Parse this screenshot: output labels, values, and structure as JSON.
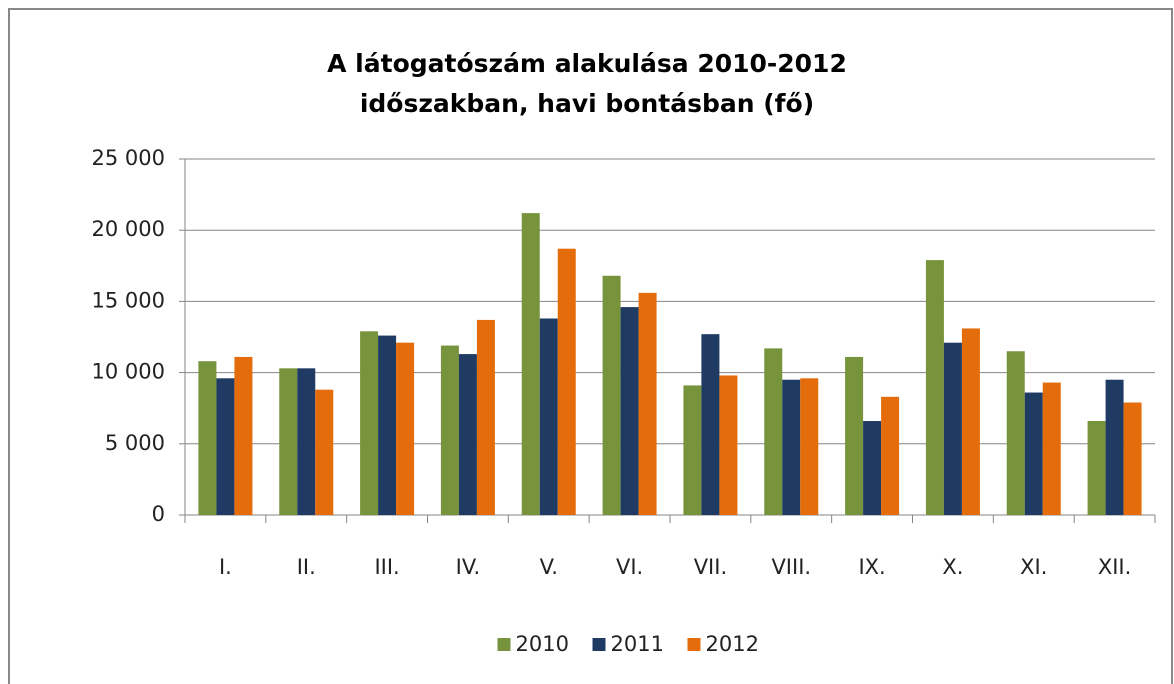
{
  "chart_data": {
    "type": "bar",
    "title": "A látogatószám alakulása 2010-2012 időszakban, havi bontásban (fő)",
    "categories": [
      "I.",
      "II.",
      "III.",
      "IV.",
      "V.",
      "VI.",
      "VII.",
      "VIII.",
      "IX.",
      "X.",
      "XI.",
      "XII."
    ],
    "series": [
      {
        "name": "2010",
        "color": "#77933c",
        "values": [
          10800,
          10300,
          12900,
          11900,
          21200,
          16800,
          9100,
          11700,
          11100,
          17900,
          11500,
          6600
        ]
      },
      {
        "name": "2011",
        "color": "#1f3b63",
        "values": [
          9600,
          10300,
          12600,
          11300,
          13800,
          14600,
          12700,
          9500,
          6600,
          12100,
          8600,
          9500
        ]
      },
      {
        "name": "2012",
        "color": "#e46c0a",
        "values": [
          11100,
          8800,
          12100,
          13700,
          18700,
          15600,
          9800,
          9600,
          8300,
          13100,
          9300,
          7900
        ]
      }
    ],
    "ylim": [
      0,
      25000
    ],
    "yticks": [
      0,
      {
        "value": 5000,
        "label": "5 000"
      },
      {
        "value": 10000,
        "label": "10 000"
      },
      {
        "value": 15000,
        "label": "15 000"
      },
      {
        "value": 20000,
        "label": "20 000"
      },
      {
        "value": 25000,
        "label": "25 000"
      }
    ],
    "grid": true,
    "legend": "bottom"
  }
}
